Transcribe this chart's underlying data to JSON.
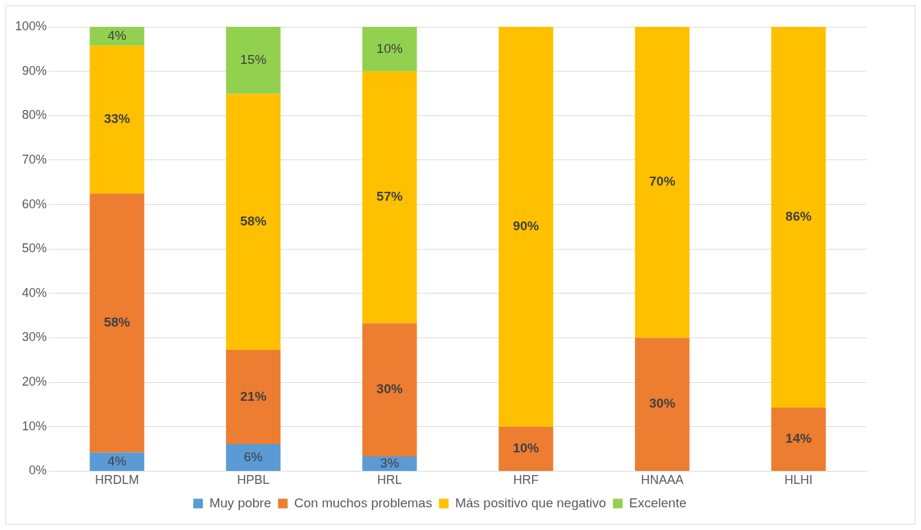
{
  "chart_data": {
    "type": "bar",
    "stacked": true,
    "categories": [
      "HRDLM",
      "HPBL",
      "HRL",
      "HRF",
      "HNAAA",
      "HLHI"
    ],
    "series": [
      {
        "name": "Muy pobre",
        "color": "#5b9bd5",
        "values": [
          4.2,
          6.1,
          3.3,
          null,
          null,
          null
        ],
        "value_labels": [
          "4%",
          "6%",
          "3%",
          null,
          null,
          null
        ]
      },
      {
        "name": "Con muchos problemas",
        "color": "#ed7d31",
        "values": [
          58.3,
          21.2,
          30.0,
          10.0,
          30.0,
          14.3
        ],
        "value_labels": [
          "58%",
          "21%",
          "30%",
          "10%",
          "30%",
          "14%"
        ]
      },
      {
        "name": "Más positivo que negativo",
        "color": "#ffc000",
        "values": [
          33.3,
          57.6,
          56.7,
          90.0,
          70.0,
          85.7
        ],
        "value_labels": [
          "33%",
          "58%",
          "57%",
          "90%",
          "70%",
          "86%"
        ]
      },
      {
        "name": "Excelente",
        "color": "#92d050",
        "values": [
          4.2,
          15.1,
          10.0,
          null,
          null,
          null
        ],
        "value_labels": [
          "4%",
          "15%",
          "10%",
          null,
          null,
          null
        ]
      }
    ],
    "ylim": [
      0,
      100
    ],
    "yticks": [
      {
        "value": 0,
        "label": "0%"
      },
      {
        "value": 10,
        "label": "10%"
      },
      {
        "value": 20,
        "label": "20%"
      },
      {
        "value": 30,
        "label": "30%"
      },
      {
        "value": 40,
        "label": "40%"
      },
      {
        "value": 50,
        "label": "50%"
      },
      {
        "value": 60,
        "label": "60%"
      },
      {
        "value": 70,
        "label": "70%"
      },
      {
        "value": 80,
        "label": "80%"
      },
      {
        "value": 90,
        "label": "90%"
      },
      {
        "value": 100,
        "label": "100%"
      }
    ],
    "grid": "y",
    "legend": "bottom"
  }
}
